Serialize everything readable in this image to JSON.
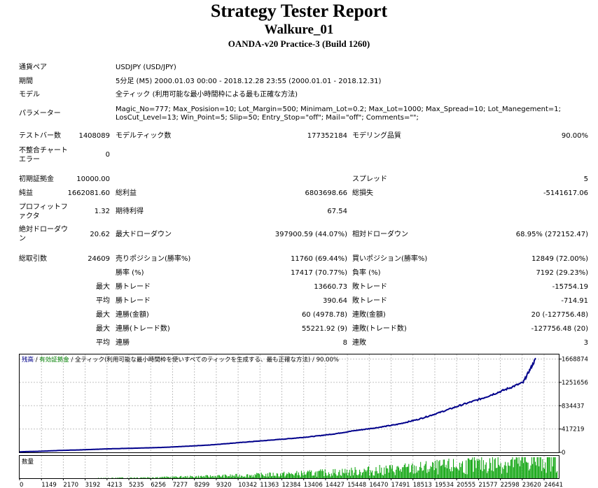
{
  "report": {
    "title": "Strategy Tester Report",
    "expert": "Walkure_01",
    "server": "OANDA-v20 Practice-3 (Build 1260)"
  },
  "settings": {
    "symbol_label": "通貨ペア",
    "symbol": "USDJPY (USD/JPY)",
    "period_label": "期間",
    "period": "5分足 (M5) 2000.01.03 00:00 - 2018.12.28 23:55 (2000.01.01 - 2018.12.31)",
    "model_label": "モデル",
    "model": "全ティック (利用可能な最小時間枠による最も正確な方法)",
    "params_label": "パラメーター",
    "params_line1": "Magic_No=777; Max_Posision=10; Lot_Margin=500; Minimam_Lot=0.2; Max_Lot=1000; Max_Spread=10; Lot_Manegement=1;",
    "params_line2": "LosCut_Level=13; Win_Point=5; Slip=50; Entry_Stop=\"off\"; Mail=\"off\"; Comments=\"\";"
  },
  "stats": {
    "bars_label": "テストバー数",
    "bars": "1408089",
    "ticks_label": "モデルティック数",
    "ticks": "177352184",
    "quality_label": "モデリング品質",
    "quality": "90.00%",
    "mismatch_label": "不整合チャートエラー",
    "mismatch": "0",
    "deposit_label": "初期証拠金",
    "deposit": "10000.00",
    "spread_label": "スプレッド",
    "spread": "5",
    "net_label": "純益",
    "net": "1662081.60",
    "gross_profit_label": "総利益",
    "gross_profit": "6803698.66",
    "gross_loss_label": "総損失",
    "gross_loss": "-5141617.06",
    "pf_label": "プロフィットファクタ",
    "pf": "1.32",
    "payoff_label": "期待利得",
    "payoff": "67.54",
    "abs_dd_label": "絶対ドローダウン",
    "abs_dd": "20.62",
    "max_dd_label": "最大ドローダウン",
    "max_dd": "397900.59 (44.07%)",
    "rel_dd_label": "相対ドローダウン",
    "rel_dd": "68.95% (272152.47)",
    "trades_label": "総取引数",
    "trades": "24609",
    "short_label": "売りポジション(勝率%)",
    "short": "11760 (69.44%)",
    "long_label": "買いポジション(勝率%)",
    "long": "12849 (72.00%)",
    "win_label": "勝率 (%)",
    "win": "17417 (70.77%)",
    "loss_label": "負率 (%)",
    "loss": "7192 (29.23%)",
    "max_label": "最大",
    "avg_label": "平均",
    "largest_win_label": "勝トレード",
    "largest_win": "13660.73",
    "largest_loss_label": "敗トレード",
    "largest_loss": "-15754.19",
    "avg_win_label": "勝トレード",
    "avg_win": "390.64",
    "avg_loss_label": "敗トレード",
    "avg_loss": "-714.91",
    "max_cons_wins_label": "連勝(金額)",
    "max_cons_wins": "60 (4978.78)",
    "max_cons_losses_label": "連敗(金額)",
    "max_cons_losses": "20 (-127756.48)",
    "max_cons_profit_label": "連勝(トレード数)",
    "max_cons_profit": "55221.92 (9)",
    "max_cons_loss_label": "連敗(トレード数)",
    "max_cons_loss": "-127756.48 (20)",
    "avg_cons_wins_label": "連勝",
    "avg_cons_wins": "8",
    "avg_cons_losses_label": "連敗",
    "avg_cons_losses": "3"
  },
  "chart_data": {
    "type": "line",
    "legend": {
      "balance": "残高",
      "sep1": " / ",
      "equity": "有効証拠金",
      "sep2": " / ",
      "model": "全ティック(利用可能な最小時間枠を使いすべてのティックを生成する、最も正確な方法)",
      "sep3": " / ",
      "quality": "90.00%"
    },
    "volume_label": "数量",
    "y_ticks": [
      0,
      417219,
      834437,
      1251656,
      1668874
    ],
    "y_tick_labels": [
      "0",
      "417219",
      "834437",
      "1251656",
      "1668874"
    ],
    "ylim": [
      0,
      1751000
    ],
    "x_ticks": [
      "0",
      "1149",
      "2170",
      "3192",
      "4213",
      "5235",
      "6256",
      "7277",
      "8299",
      "9320",
      "10342",
      "11363",
      "12384",
      "13406",
      "14427",
      "15448",
      "16470",
      "17491",
      "18513",
      "19534",
      "20555",
      "21577",
      "22598",
      "23620",
      "24641"
    ],
    "xlim": [
      0,
      25700
    ],
    "series": [
      {
        "color": "#00008b",
        "x": [
          0,
          1000,
          2000,
          3000,
          4000,
          5000,
          6000,
          7000,
          8000,
          9000,
          10000,
          11000,
          12000,
          13000,
          14000,
          15000,
          16000,
          17000,
          18000,
          19000,
          20000,
          21000,
          22000,
          23000,
          24000,
          24609
        ],
        "y": [
          10000,
          20000,
          35000,
          45000,
          60000,
          70000,
          80000,
          90000,
          110000,
          130000,
          160000,
          190000,
          220000,
          250000,
          285000,
          330000,
          390000,
          440000,
          500000,
          590000,
          710000,
          840000,
          960000,
          1100000,
          1250000,
          1680000
        ]
      }
    ],
    "colors": {
      "balance": "#00008b",
      "equity": "#008000",
      "volume": "#00a000"
    }
  }
}
